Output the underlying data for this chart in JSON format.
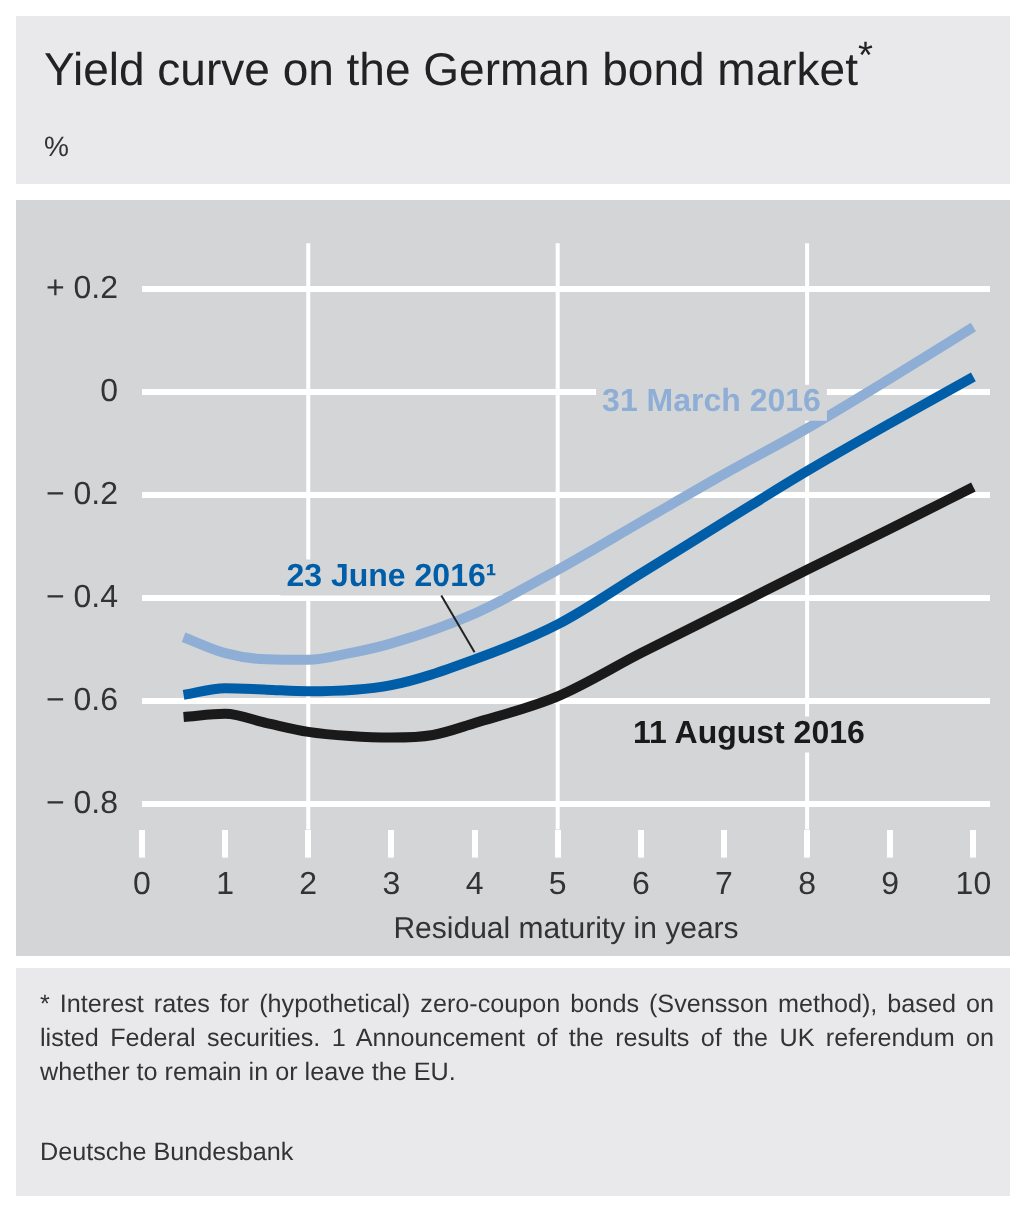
{
  "chart_data": {
    "type": "line",
    "title": "Yield curve on the German bond market$^{*}$",
    "ylabel": "%",
    "xlabel": "Residual maturity in years",
    "annotations": [
      "* Interest rates for (hypothetical) zero-coupon bonds (Svensson method), based on listed Federal securities. 1 Announcement of the results of the UK referendum on whether to remain in or leave the EU.",
      "Deutsche Bundesbank"
    ],
    "series": [
      {
        "name": "31 March 2016",
        "color": "#8eaed6",
        "x": [
          0.5,
          1,
          1.5,
          2,
          2.5,
          3,
          4,
          5,
          6,
          7,
          8,
          9,
          10
        ],
        "values": [
          -0.476,
          -0.507,
          -0.519,
          -0.52,
          -0.507,
          -0.488,
          -0.43,
          -0.345,
          -0.252,
          -0.159,
          -0.07,
          0.027,
          0.127
        ]
      },
      {
        "name": "23 June 2016¹",
        "color": "#005ea8",
        "x": [
          0.5,
          1,
          1.5,
          2,
          3,
          4,
          5,
          6,
          7,
          8,
          9,
          10
        ],
        "values": [
          -0.588,
          -0.575,
          -0.578,
          -0.581,
          -0.569,
          -0.519,
          -0.451,
          -0.352,
          -0.252,
          -0.153,
          -0.06,
          0.03
        ]
      },
      {
        "name": "11 August 2016",
        "color": "#1a1a1a",
        "x": [
          0.5,
          1,
          1.5,
          2,
          2.5,
          3,
          3.5,
          4,
          5,
          6,
          7,
          8,
          9,
          10
        ],
        "values": [
          -0.631,
          -0.625,
          -0.643,
          -0.66,
          -0.668,
          -0.671,
          -0.666,
          -0.643,
          -0.591,
          -0.507,
          -0.426,
          -0.345,
          -0.265,
          -0.184
        ]
      }
    ],
    "xlim": [
      0,
      10.2
    ],
    "xticks": [
      0,
      1,
      2,
      3,
      4,
      5,
      6,
      7,
      8,
      9,
      10
    ],
    "ylim": [
      -0.85,
      0.29
    ],
    "yticks": [
      {
        "value": 0.2,
        "label": "+ 0.2"
      },
      0,
      {
        "value": -0.2,
        "label": "− 0.2"
      },
      {
        "value": -0.4,
        "label": "− 0.4"
      },
      {
        "value": -0.6,
        "label": "− 0.6"
      },
      {
        "value": -0.8,
        "label": "− 0.8"
      }
    ],
    "ref_lines": [
      {
        "axis": "x",
        "value": 2,
        "color": "#ffffff"
      },
      {
        "axis": "x",
        "value": 5,
        "color": "#ffffff"
      },
      {
        "axis": "x",
        "value": 8,
        "color": "#ffffff"
      }
    ],
    "grid": "y",
    "legend": false,
    "marker": "none",
    "line_style": "solid"
  }
}
